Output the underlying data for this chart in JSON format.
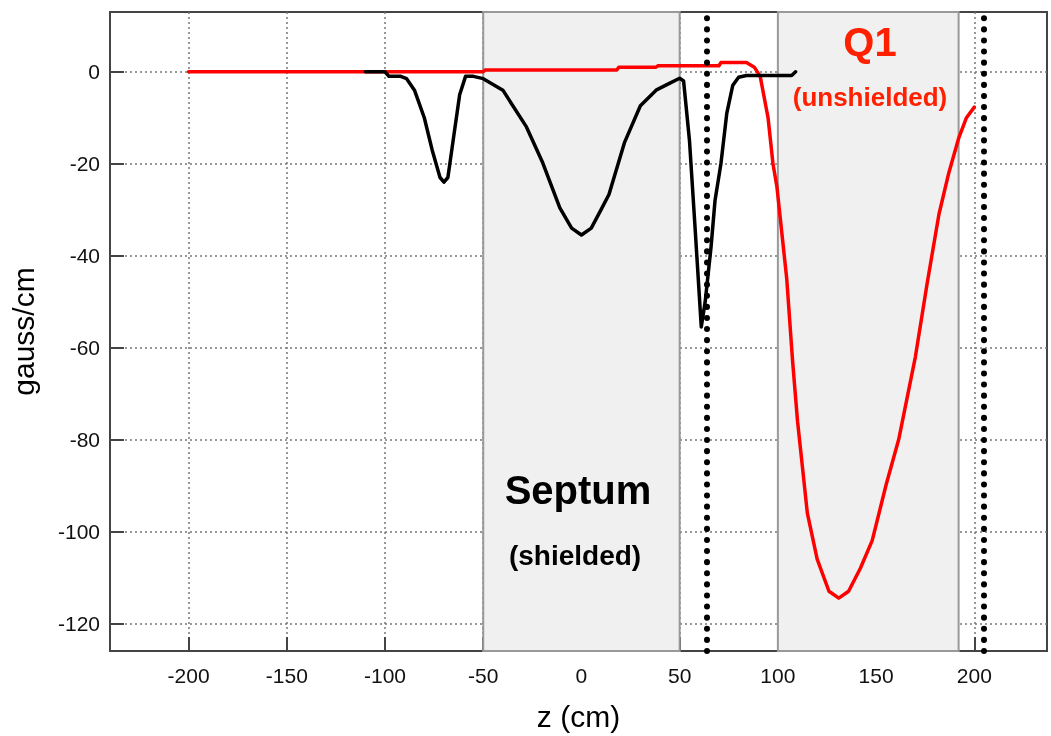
{
  "chart_data": {
    "type": "line",
    "xlabel": "z (cm)",
    "ylabel": "gauss/cm",
    "xlim": [
      -240,
      237
    ],
    "xticks": [
      -200,
      -150,
      -100,
      -50,
      0,
      50,
      100,
      150,
      200
    ],
    "ylim": [
      -126,
      13
    ],
    "yticks": [
      -120,
      -100,
      -80,
      -60,
      -40,
      -20,
      0
    ],
    "grid": true,
    "marker": "none",
    "line_style": "solid",
    "series": [
      {
        "color": "#ff0000",
        "x": [
          -200,
          -50,
          -49,
          18,
          19,
          38,
          39,
          70,
          71,
          84,
          88,
          91,
          95,
          97.5,
          99.5,
          104.5,
          107.5,
          110,
          115,
          120,
          126,
          131,
          136,
          142,
          148,
          155,
          161.5,
          170,
          176,
          182,
          187,
          192,
          196,
          200
        ],
        "values": [
          0,
          0,
          0.4,
          0.4,
          1,
          1,
          1.3,
          1.3,
          2,
          2,
          1,
          -1,
          -10,
          -20,
          -25,
          -45,
          -63,
          -76,
          -96,
          -106,
          -113,
          -114.5,
          -113,
          -108,
          -102,
          -90,
          -80,
          -62,
          -46,
          -31,
          -22,
          -14.5,
          -10,
          -7.7
        ]
      },
      {
        "color": "#000000",
        "x": [
          -110,
          -100,
          -98,
          -92,
          -89,
          -85,
          -80,
          -76,
          -72,
          -70,
          -68,
          -65,
          -62,
          -59,
          -55,
          -50,
          -40,
          -28,
          -20,
          -11,
          -5,
          0,
          5,
          10,
          14,
          22,
          30,
          38,
          44,
          50,
          52,
          55,
          58,
          61,
          63,
          66,
          68,
          71,
          74,
          77,
          80,
          84,
          107,
          109
        ],
        "values": [
          0,
          0,
          -1,
          -1,
          -1.5,
          -4,
          -10,
          -17,
          -23,
          -24,
          -23,
          -14,
          -5,
          -1,
          -1,
          -1.5,
          -4,
          -12,
          -19.5,
          -29.6,
          -34,
          -35.5,
          -34,
          -30,
          -26.7,
          -15.3,
          -7.4,
          -4,
          -2.7,
          -1.4,
          -2,
          -15,
          -35,
          -55.5,
          -50,
          -38,
          -28,
          -20,
          -9,
          -3,
          -1.2,
          -0.8,
          -0.8,
          0
        ]
      }
    ],
    "bands": [
      {
        "axis": "x",
        "from": -50,
        "to": 50,
        "color": "#f0f0f0"
      },
      {
        "axis": "x",
        "from": 100,
        "to": 192,
        "color": "#f0f0f0"
      }
    ],
    "ref_lines": [
      {
        "axis": "x",
        "value": 64,
        "line_style": "dotted",
        "color": "#000000"
      },
      {
        "axis": "x",
        "value": 205,
        "line_style": "dotted",
        "color": "#000000"
      }
    ],
    "annotations": [
      "Septum",
      "(shielded)",
      "Q1",
      "(unshielded)"
    ]
  }
}
